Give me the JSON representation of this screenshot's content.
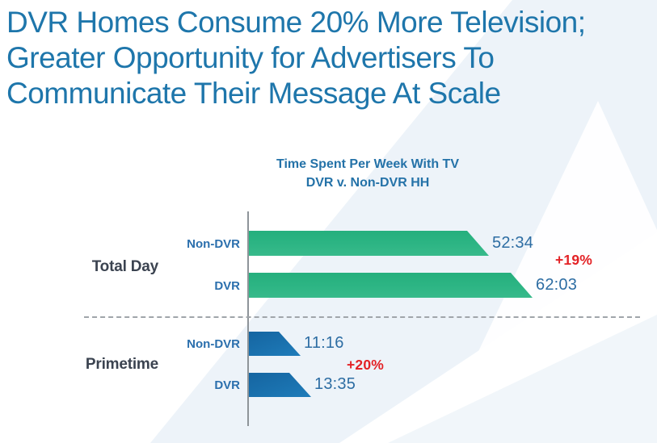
{
  "page": {
    "title_line1": "DVR Homes Consume 20% More Television;",
    "title_line2": "Greater Opportunity for Advertisers To",
    "title_line3": "Communicate Their Message At Scale"
  },
  "chart_data": {
    "type": "bar",
    "orientation": "horizontal",
    "title": "Time Spent Per Week With TV",
    "subtitle": "DVR v. Non-DVR HH",
    "unit": "hours:minutes per week",
    "value_format": "h:mm",
    "grid": false,
    "legend": "none",
    "axis": {
      "baseline": "left-vertical",
      "group_separator": "dashed"
    },
    "groups": [
      {
        "label": "Total Day",
        "delta": "+19%",
        "bars": [
          {
            "label": "Non-DVR",
            "value": "52:34",
            "hours": 52.567
          },
          {
            "label": "DVR",
            "value": "62:03",
            "hours": 62.05
          }
        ]
      },
      {
        "label": "Primetime",
        "delta": "+20%",
        "bars": [
          {
            "label": "Non-DVR",
            "value": "11:16",
            "hours": 11.267
          },
          {
            "label": "DVR",
            "value": "13:35",
            "hours": 13.583
          }
        ]
      }
    ],
    "colors": {
      "total_day_bar": "#2db584",
      "primetime_bar": "#1769a8",
      "value_text": "#2d6da3",
      "delta_text": "#e32226",
      "bar_label_text": "#2b6fad",
      "group_label_text": "#3b4350",
      "deck_title_text": "#1e76ab",
      "chart_title_text": "#2472a8"
    }
  }
}
